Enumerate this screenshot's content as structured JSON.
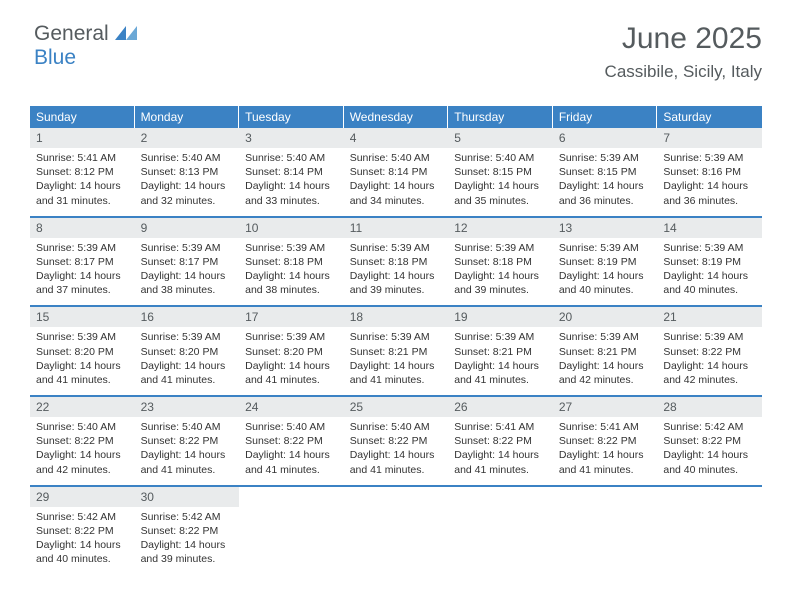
{
  "brand": {
    "word1": "General",
    "word2": "Blue"
  },
  "header": {
    "title": "June 2025",
    "location": "Cassibile, Sicily, Italy"
  },
  "colors": {
    "accent": "#3b82c4",
    "daynum_bg": "#e9ebec",
    "text_dark": "#555b5e",
    "body_text": "#333333",
    "bg": "#ffffff"
  },
  "weekdays": [
    "Sunday",
    "Monday",
    "Tuesday",
    "Wednesday",
    "Thursday",
    "Friday",
    "Saturday"
  ],
  "weeks": [
    [
      {
        "n": "1",
        "sr": "5:41 AM",
        "ss": "8:12 PM",
        "dh": "14",
        "dm": "31"
      },
      {
        "n": "2",
        "sr": "5:40 AM",
        "ss": "8:13 PM",
        "dh": "14",
        "dm": "32"
      },
      {
        "n": "3",
        "sr": "5:40 AM",
        "ss": "8:14 PM",
        "dh": "14",
        "dm": "33"
      },
      {
        "n": "4",
        "sr": "5:40 AM",
        "ss": "8:14 PM",
        "dh": "14",
        "dm": "34"
      },
      {
        "n": "5",
        "sr": "5:40 AM",
        "ss": "8:15 PM",
        "dh": "14",
        "dm": "35"
      },
      {
        "n": "6",
        "sr": "5:39 AM",
        "ss": "8:15 PM",
        "dh": "14",
        "dm": "36"
      },
      {
        "n": "7",
        "sr": "5:39 AM",
        "ss": "8:16 PM",
        "dh": "14",
        "dm": "36"
      }
    ],
    [
      {
        "n": "8",
        "sr": "5:39 AM",
        "ss": "8:17 PM",
        "dh": "14",
        "dm": "37"
      },
      {
        "n": "9",
        "sr": "5:39 AM",
        "ss": "8:17 PM",
        "dh": "14",
        "dm": "38"
      },
      {
        "n": "10",
        "sr": "5:39 AM",
        "ss": "8:18 PM",
        "dh": "14",
        "dm": "38"
      },
      {
        "n": "11",
        "sr": "5:39 AM",
        "ss": "8:18 PM",
        "dh": "14",
        "dm": "39"
      },
      {
        "n": "12",
        "sr": "5:39 AM",
        "ss": "8:18 PM",
        "dh": "14",
        "dm": "39"
      },
      {
        "n": "13",
        "sr": "5:39 AM",
        "ss": "8:19 PM",
        "dh": "14",
        "dm": "40"
      },
      {
        "n": "14",
        "sr": "5:39 AM",
        "ss": "8:19 PM",
        "dh": "14",
        "dm": "40"
      }
    ],
    [
      {
        "n": "15",
        "sr": "5:39 AM",
        "ss": "8:20 PM",
        "dh": "14",
        "dm": "41"
      },
      {
        "n": "16",
        "sr": "5:39 AM",
        "ss": "8:20 PM",
        "dh": "14",
        "dm": "41"
      },
      {
        "n": "17",
        "sr": "5:39 AM",
        "ss": "8:20 PM",
        "dh": "14",
        "dm": "41"
      },
      {
        "n": "18",
        "sr": "5:39 AM",
        "ss": "8:21 PM",
        "dh": "14",
        "dm": "41"
      },
      {
        "n": "19",
        "sr": "5:39 AM",
        "ss": "8:21 PM",
        "dh": "14",
        "dm": "41"
      },
      {
        "n": "20",
        "sr": "5:39 AM",
        "ss": "8:21 PM",
        "dh": "14",
        "dm": "42"
      },
      {
        "n": "21",
        "sr": "5:39 AM",
        "ss": "8:22 PM",
        "dh": "14",
        "dm": "42"
      }
    ],
    [
      {
        "n": "22",
        "sr": "5:40 AM",
        "ss": "8:22 PM",
        "dh": "14",
        "dm": "42"
      },
      {
        "n": "23",
        "sr": "5:40 AM",
        "ss": "8:22 PM",
        "dh": "14",
        "dm": "41"
      },
      {
        "n": "24",
        "sr": "5:40 AM",
        "ss": "8:22 PM",
        "dh": "14",
        "dm": "41"
      },
      {
        "n": "25",
        "sr": "5:40 AM",
        "ss": "8:22 PM",
        "dh": "14",
        "dm": "41"
      },
      {
        "n": "26",
        "sr": "5:41 AM",
        "ss": "8:22 PM",
        "dh": "14",
        "dm": "41"
      },
      {
        "n": "27",
        "sr": "5:41 AM",
        "ss": "8:22 PM",
        "dh": "14",
        "dm": "41"
      },
      {
        "n": "28",
        "sr": "5:42 AM",
        "ss": "8:22 PM",
        "dh": "14",
        "dm": "40"
      }
    ],
    [
      {
        "n": "29",
        "sr": "5:42 AM",
        "ss": "8:22 PM",
        "dh": "14",
        "dm": "40"
      },
      {
        "n": "30",
        "sr": "5:42 AM",
        "ss": "8:22 PM",
        "dh": "14",
        "dm": "39"
      },
      {
        "blank": true
      },
      {
        "blank": true
      },
      {
        "blank": true
      },
      {
        "blank": true
      },
      {
        "blank": true
      }
    ]
  ],
  "labels": {
    "sunrise": "Sunrise:",
    "sunset": "Sunset:",
    "daylight": "Daylight:",
    "hours": "hours",
    "and": "and",
    "minutes": "minutes."
  }
}
